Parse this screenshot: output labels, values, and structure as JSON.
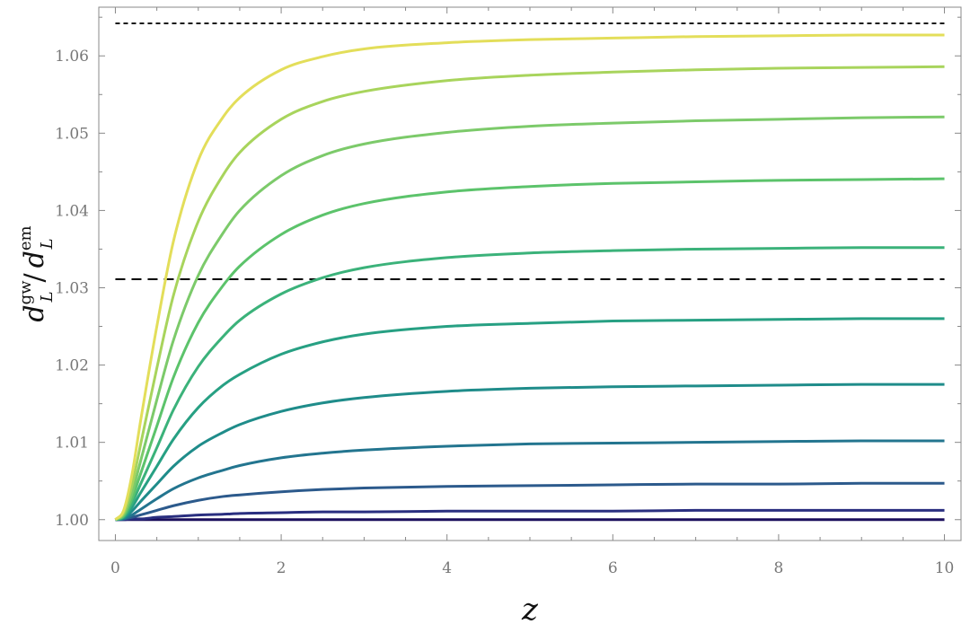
{
  "chart_data": {
    "type": "line",
    "title": "",
    "xlabel": "z",
    "ylabel": "d_L^gw / d_L^em",
    "ylabel_parts": {
      "base": "d",
      "sub": "L",
      "sup_num": "gw",
      "sup_den": "em",
      "sep": "/"
    },
    "xlim": [
      -0.2,
      10.2
    ],
    "ylim": [
      0.9973,
      1.0663
    ],
    "x_ticks": [
      0,
      2,
      4,
      6,
      8,
      10
    ],
    "x_tick_labels": [
      "0",
      "2",
      "4",
      "6",
      "8",
      "10"
    ],
    "y_ticks": [
      1.0,
      1.01,
      1.02,
      1.03,
      1.04,
      1.05,
      1.06
    ],
    "y_tick_labels": [
      "1.00",
      "1.01",
      "1.02",
      "1.03",
      "1.04",
      "1.05",
      "1.06"
    ],
    "grid": false,
    "legend": "none",
    "reference_lines": [
      {
        "y": 1.0642,
        "style": "dashed",
        "color": "#000000"
      },
      {
        "y": 1.0311,
        "style": "dashed",
        "color": "#000000"
      }
    ],
    "x": [
      0,
      0.1,
      0.2,
      0.3,
      0.5,
      0.7,
      1.0,
      1.3,
      1.5,
      2.0,
      2.5,
      3.0,
      4.0,
      5.0,
      6.0,
      7.0,
      8.0,
      9.0,
      10.0
    ],
    "series": [
      {
        "color": "#1b0f5c",
        "values": [
          1.0,
          1.0,
          1.0,
          1.0,
          1.0,
          1.0,
          1.0,
          1.0,
          1.0,
          1.0,
          1.0,
          1.0,
          1.0,
          1.0,
          1.0,
          1.0,
          1.0,
          1.0,
          1.0
        ]
      },
      {
        "color": "#2a2f80",
        "values": [
          1.0,
          1.0,
          1.0001,
          1.0001,
          1.0003,
          1.0004,
          1.0006,
          1.0007,
          1.0008,
          1.0009,
          1.001,
          1.001,
          1.0011,
          1.0011,
          1.0011,
          1.0012,
          1.0012,
          1.0012,
          1.0012
        ]
      },
      {
        "color": "#2c5a8c",
        "values": [
          1.0,
          1.0001,
          1.0003,
          1.0006,
          1.0012,
          1.0018,
          1.0025,
          1.003,
          1.0032,
          1.0036,
          1.0039,
          1.0041,
          1.0043,
          1.0044,
          1.0045,
          1.0046,
          1.0046,
          1.0047,
          1.0047
        ]
      },
      {
        "color": "#23758f",
        "values": [
          1.0,
          1.0001,
          1.0006,
          1.0013,
          1.0027,
          1.004,
          1.0054,
          1.0064,
          1.007,
          1.008,
          1.0086,
          1.009,
          1.0095,
          1.0098,
          1.0099,
          1.01,
          1.0101,
          1.0102,
          1.0102
        ]
      },
      {
        "color": "#1f8c8a",
        "values": [
          1.0,
          1.0002,
          1.0011,
          1.0023,
          1.0046,
          1.0069,
          1.0095,
          1.0113,
          1.0123,
          1.014,
          1.0151,
          1.0158,
          1.0166,
          1.017,
          1.0172,
          1.0173,
          1.0174,
          1.0175,
          1.0175
        ]
      },
      {
        "color": "#27a083",
        "values": [
          1.0,
          1.0003,
          1.0016,
          1.0034,
          1.0069,
          1.0104,
          1.0145,
          1.0174,
          1.0188,
          1.0214,
          1.023,
          1.024,
          1.025,
          1.0254,
          1.0257,
          1.0258,
          1.0259,
          1.026,
          1.026
        ]
      },
      {
        "color": "#3bb27a",
        "values": [
          1.0,
          1.0004,
          1.0021,
          1.0045,
          1.0093,
          1.0142,
          1.0198,
          1.0237,
          1.0258,
          1.0292,
          1.0313,
          1.0326,
          1.0339,
          1.0345,
          1.0348,
          1.035,
          1.0351,
          1.0352,
          1.0352
        ]
      },
      {
        "color": "#5cc36b",
        "values": [
          1.0,
          1.0005,
          1.0027,
          1.0058,
          1.0121,
          1.0184,
          1.0255,
          1.0303,
          1.0328,
          1.0369,
          1.0394,
          1.0409,
          1.0424,
          1.0431,
          1.0435,
          1.0437,
          1.0439,
          1.044,
          1.0441
        ]
      },
      {
        "color": "#7cca6a",
        "values": [
          1.0,
          1.0007,
          1.0034,
          1.0074,
          1.0155,
          1.0232,
          1.0316,
          1.0371,
          1.04,
          1.0445,
          1.0471,
          1.0486,
          1.0501,
          1.0509,
          1.0513,
          1.0516,
          1.0518,
          1.052,
          1.0521
        ]
      },
      {
        "color": "#a8d45c",
        "values": [
          1.0,
          1.0009,
          1.0044,
          1.0095,
          1.0196,
          1.029,
          1.0386,
          1.0446,
          1.0475,
          1.0518,
          1.0541,
          1.0554,
          1.0568,
          1.0575,
          1.0579,
          1.0582,
          1.0584,
          1.0585,
          1.0586
        ]
      },
      {
        "color": "#e3de5a",
        "values": [
          1.0,
          1.0012,
          1.0058,
          1.0125,
          1.025,
          1.036,
          1.0465,
          1.0521,
          1.0546,
          1.0582,
          1.0599,
          1.0609,
          1.0617,
          1.0621,
          1.0623,
          1.0625,
          1.0626,
          1.0627,
          1.0627
        ]
      }
    ]
  }
}
